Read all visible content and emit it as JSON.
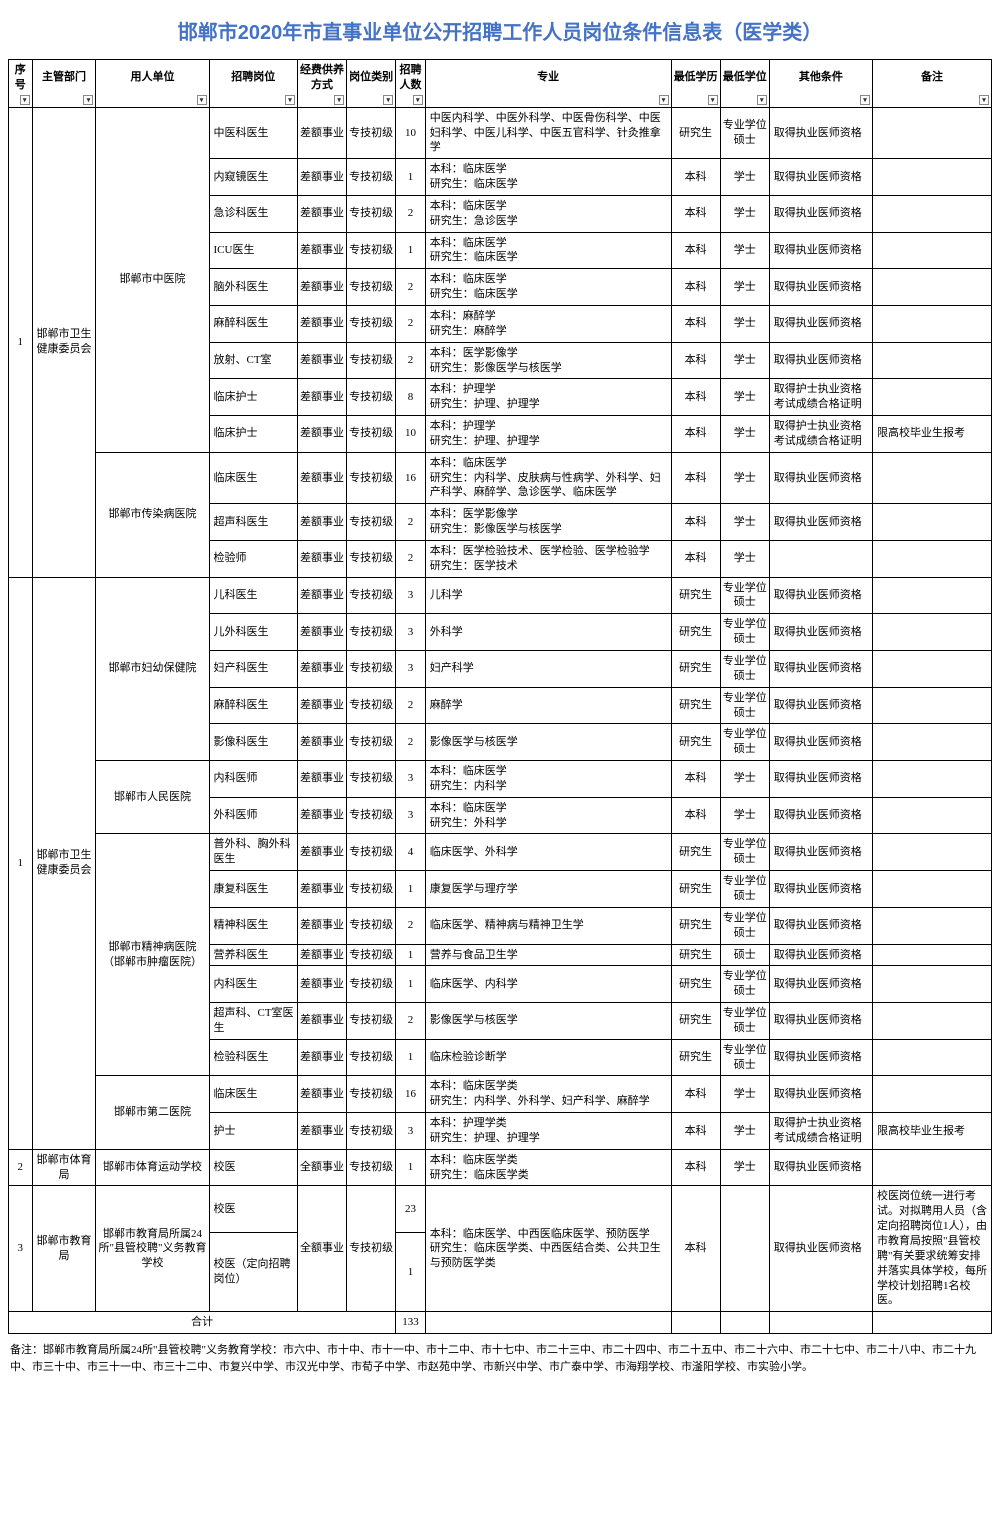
{
  "title": "邯郸市2020年市直事业单位公开招聘工作人员岗位条件信息表（医学类）",
  "columns": [
    "序号",
    "主管部门",
    "用人单位",
    "招聘岗位",
    "经费供养方式",
    "岗位类别",
    "招聘人数",
    "专业",
    "最低学历",
    "最低学位",
    "其他条件",
    "备注"
  ],
  "total_label": "合计",
  "total_count": "133",
  "footnote": "备注：邯郸市教育局所属24所\"县管校聘\"义务教育学校：市六中、市十中、市十一中、市十二中、市十七中、市二十三中、市二十四中、市二十五中、市二十六中、市二十七中、市二十八中、市二十九中、市三十中、市三十一中、市三十二中、市复兴中学、市汉光中学、市荀子中学、市赵苑中学、市新兴中学、市广泰中学、市海翔学校、市滏阳学校、市实验小学。",
  "groups": [
    {
      "seq": "1",
      "dept": "邯郸市卫生健康委员会",
      "units": [
        {
          "unit": "邯郸市中医院",
          "rows": [
            {
              "post": "中医科医生",
              "fund": "差额事业",
              "cat": "专技初级",
              "num": "10",
              "major": "中医内科学、中医外科学、中医骨伤科学、中医妇科学、中医儿科学、中医五官科学、针灸推拿学",
              "edu": "研究生",
              "deg": "专业学位硕士",
              "other": "取得执业医师资格",
              "note": ""
            },
            {
              "post": "内窥镜医生",
              "fund": "差额事业",
              "cat": "专技初级",
              "num": "1",
              "major": "本科：临床医学\n研究生：临床医学",
              "edu": "本科",
              "deg": "学士",
              "other": "取得执业医师资格",
              "note": ""
            },
            {
              "post": "急诊科医生",
              "fund": "差额事业",
              "cat": "专技初级",
              "num": "2",
              "major": "本科：临床医学\n研究生：急诊医学",
              "edu": "本科",
              "deg": "学士",
              "other": "取得执业医师资格",
              "note": ""
            },
            {
              "post": "ICU医生",
              "fund": "差额事业",
              "cat": "专技初级",
              "num": "1",
              "major": "本科：临床医学\n研究生：临床医学",
              "edu": "本科",
              "deg": "学士",
              "other": "取得执业医师资格",
              "note": ""
            },
            {
              "post": "脑外科医生",
              "fund": "差额事业",
              "cat": "专技初级",
              "num": "2",
              "major": "本科：临床医学\n研究生：临床医学",
              "edu": "本科",
              "deg": "学士",
              "other": "取得执业医师资格",
              "note": ""
            },
            {
              "post": "麻醉科医生",
              "fund": "差额事业",
              "cat": "专技初级",
              "num": "2",
              "major": "本科：麻醉学\n研究生：麻醉学",
              "edu": "本科",
              "deg": "学士",
              "other": "取得执业医师资格",
              "note": ""
            },
            {
              "post": "放射、CT室",
              "fund": "差额事业",
              "cat": "专技初级",
              "num": "2",
              "major": "本科：医学影像学\n研究生：影像医学与核医学",
              "edu": "本科",
              "deg": "学士",
              "other": "取得执业医师资格",
              "note": ""
            },
            {
              "post": "临床护士",
              "fund": "差额事业",
              "cat": "专技初级",
              "num": "8",
              "major": "本科：护理学\n研究生：护理、护理学",
              "edu": "本科",
              "deg": "学士",
              "other": "取得护士执业资格考试成绩合格证明",
              "note": ""
            },
            {
              "post": "临床护士",
              "fund": "差额事业",
              "cat": "专技初级",
              "num": "10",
              "major": "本科：护理学\n研究生：护理、护理学",
              "edu": "本科",
              "deg": "学士",
              "other": "取得护士执业资格考试成绩合格证明",
              "note": "限高校毕业生报考"
            }
          ]
        },
        {
          "unit": "邯郸市传染病医院",
          "rows": [
            {
              "post": "临床医生",
              "fund": "差额事业",
              "cat": "专技初级",
              "num": "16",
              "major": "本科：临床医学\n研究生：内科学、皮肤病与性病学、外科学、妇产科学、麻醉学、急诊医学、临床医学",
              "edu": "本科",
              "deg": "学士",
              "other": "取得执业医师资格",
              "note": ""
            },
            {
              "post": "超声科医生",
              "fund": "差额事业",
              "cat": "专技初级",
              "num": "2",
              "major": "本科：医学影像学\n研究生：影像医学与核医学",
              "edu": "本科",
              "deg": "学士",
              "other": "取得执业医师资格",
              "note": ""
            },
            {
              "post": "检验师",
              "fund": "差额事业",
              "cat": "专技初级",
              "num": "2",
              "major": "本科：医学检验技术、医学检验、医学检验学\n研究生：医学技术",
              "edu": "本科",
              "deg": "学士",
              "other": "",
              "note": ""
            }
          ]
        }
      ]
    },
    {
      "seq": "1",
      "dept": "邯郸市卫生健康委员会",
      "units": [
        {
          "unit": "邯郸市妇幼保健院",
          "rows": [
            {
              "post": "儿科医生",
              "fund": "差额事业",
              "cat": "专技初级",
              "num": "3",
              "major": "儿科学",
              "edu": "研究生",
              "deg": "专业学位硕士",
              "other": "取得执业医师资格",
              "note": ""
            },
            {
              "post": "儿外科医生",
              "fund": "差额事业",
              "cat": "专技初级",
              "num": "3",
              "major": "外科学",
              "edu": "研究生",
              "deg": "专业学位硕士",
              "other": "取得执业医师资格",
              "note": ""
            },
            {
              "post": "妇产科医生",
              "fund": "差额事业",
              "cat": "专技初级",
              "num": "3",
              "major": "妇产科学",
              "edu": "研究生",
              "deg": "专业学位硕士",
              "other": "取得执业医师资格",
              "note": ""
            },
            {
              "post": "麻醉科医生",
              "fund": "差额事业",
              "cat": "专技初级",
              "num": "2",
              "major": "麻醉学",
              "edu": "研究生",
              "deg": "专业学位硕士",
              "other": "取得执业医师资格",
              "note": ""
            },
            {
              "post": "影像科医生",
              "fund": "差额事业",
              "cat": "专技初级",
              "num": "2",
              "major": "影像医学与核医学",
              "edu": "研究生",
              "deg": "专业学位硕士",
              "other": "取得执业医师资格",
              "note": ""
            }
          ]
        },
        {
          "unit": "邯郸市人民医院",
          "rows": [
            {
              "post": "内科医师",
              "fund": "差额事业",
              "cat": "专技初级",
              "num": "3",
              "major": "本科：临床医学\n研究生：内科学",
              "edu": "本科",
              "deg": "学士",
              "other": "取得执业医师资格",
              "note": ""
            },
            {
              "post": "外科医师",
              "fund": "差额事业",
              "cat": "专技初级",
              "num": "3",
              "major": "本科：临床医学\n研究生：外科学",
              "edu": "本科",
              "deg": "学士",
              "other": "取得执业医师资格",
              "note": ""
            }
          ]
        },
        {
          "unit": "邯郸市精神病医院（邯郸市肿瘤医院）",
          "rows": [
            {
              "post": "普外科、胸外科医生",
              "fund": "差额事业",
              "cat": "专技初级",
              "num": "4",
              "major": "临床医学、外科学",
              "edu": "研究生",
              "deg": "专业学位硕士",
              "other": "取得执业医师资格",
              "note": ""
            },
            {
              "post": "康复科医生",
              "fund": "差额事业",
              "cat": "专技初级",
              "num": "1",
              "major": "康复医学与理疗学",
              "edu": "研究生",
              "deg": "专业学位硕士",
              "other": "取得执业医师资格",
              "note": ""
            },
            {
              "post": "精神科医生",
              "fund": "差额事业",
              "cat": "专技初级",
              "num": "2",
              "major": "临床医学、精神病与精神卫生学",
              "edu": "研究生",
              "deg": "专业学位硕士",
              "other": "取得执业医师资格",
              "note": ""
            },
            {
              "post": "营养科医生",
              "fund": "差额事业",
              "cat": "专技初级",
              "num": "1",
              "major": "营养与食品卫生学",
              "edu": "研究生",
              "deg": "硕士",
              "other": "取得执业医师资格",
              "note": ""
            },
            {
              "post": "内科医生",
              "fund": "差额事业",
              "cat": "专技初级",
              "num": "1",
              "major": "临床医学、内科学",
              "edu": "研究生",
              "deg": "专业学位硕士",
              "other": "取得执业医师资格",
              "note": ""
            },
            {
              "post": "超声科、CT室医生",
              "fund": "差额事业",
              "cat": "专技初级",
              "num": "2",
              "major": "影像医学与核医学",
              "edu": "研究生",
              "deg": "专业学位硕士",
              "other": "取得执业医师资格",
              "note": ""
            },
            {
              "post": "检验科医生",
              "fund": "差额事业",
              "cat": "专技初级",
              "num": "1",
              "major": "临床检验诊断学",
              "edu": "研究生",
              "deg": "专业学位硕士",
              "other": "取得执业医师资格",
              "note": ""
            }
          ]
        },
        {
          "unit": "邯郸市第二医院",
          "rows": [
            {
              "post": "临床医生",
              "fund": "差额事业",
              "cat": "专技初级",
              "num": "16",
              "major": "本科：临床医学类\n研究生：内科学、外科学、妇产科学、麻醉学",
              "edu": "本科",
              "deg": "学士",
              "other": "取得执业医师资格",
              "note": ""
            },
            {
              "post": "护士",
              "fund": "差额事业",
              "cat": "专技初级",
              "num": "3",
              "major": "本科：护理学类\n研究生：护理、护理学",
              "edu": "本科",
              "deg": "学士",
              "other": "取得护士执业资格考试成绩合格证明",
              "note": "限高校毕业生报考"
            }
          ]
        }
      ]
    },
    {
      "seq": "2",
      "dept": "邯郸市体育局",
      "units": [
        {
          "unit": "邯郸市体育运动学校",
          "rows": [
            {
              "post": "校医",
              "fund": "全额事业",
              "cat": "专技初级",
              "num": "1",
              "major": "本科：临床医学类\n研究生：临床医学类",
              "edu": "本科",
              "deg": "学士",
              "other": "取得执业医师资格",
              "note": ""
            }
          ]
        }
      ]
    }
  ],
  "edu_group": {
    "seq": "3",
    "dept": "邯郸市教育局",
    "unit": "邯郸市教育局所属24所\"县管校聘\"义务教育学校",
    "fund": "全额事业",
    "cat": "专技初级",
    "major": "本科：临床医学、中西医临床医学、预防医学\n研究生：临床医学类、中西医结合类、公共卫生与预防医学类",
    "edu": "本科",
    "deg": "",
    "other": "取得执业医师资格",
    "note": "校医岗位统一进行考试。对拟聘用人员（含定向招聘岗位1人），由市教育局按照\"县管校聘\"有关要求统筹安排并落实具体学校，每所学校计划招聘1名校医。",
    "rows": [
      {
        "post": "校医",
        "num": "23"
      },
      {
        "post": "校医（定向招聘岗位）",
        "num": "1"
      }
    ]
  }
}
